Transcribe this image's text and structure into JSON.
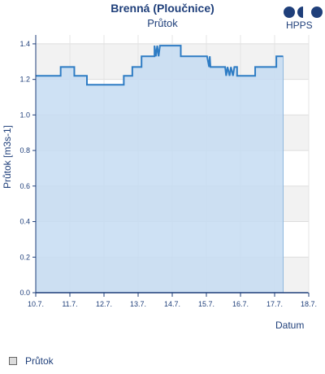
{
  "header": {
    "title": "Brenná (Ploučnice)",
    "subtitle": "Průtok",
    "logo_text": "HPPS"
  },
  "chart_data": {
    "type": "area",
    "title": "Brenná (Ploučnice)",
    "subtitle": "Průtok",
    "xlabel": "Datum",
    "ylabel": "Průtok [m3s-1]",
    "x_ticks": [
      "10.7.",
      "11.7.",
      "12.7.",
      "13.7.",
      "14.7.",
      "15.7.",
      "16.7.",
      "17.7.",
      "18.7."
    ],
    "y_ticks": [
      "0.0",
      "0.2",
      "0.4",
      "0.6",
      "0.8",
      "1.0",
      "1.2",
      "1.4"
    ],
    "ylim": [
      0,
      1.45
    ],
    "xlim": [
      0,
      8
    ],
    "grid": true,
    "legend_position": "bottom-left",
    "series": [
      {
        "name": "Průtok",
        "line_color": "#2e7cc4",
        "fill_color": "#c5dcf2",
        "points": [
          [
            0.0,
            1.22
          ],
          [
            0.73,
            1.22
          ],
          [
            0.73,
            1.27
          ],
          [
            1.13,
            1.27
          ],
          [
            1.13,
            1.22
          ],
          [
            1.5,
            1.22
          ],
          [
            1.5,
            1.17
          ],
          [
            2.58,
            1.17
          ],
          [
            2.58,
            1.22
          ],
          [
            2.83,
            1.22
          ],
          [
            2.83,
            1.27
          ],
          [
            3.1,
            1.27
          ],
          [
            3.1,
            1.33
          ],
          [
            3.48,
            1.33
          ],
          [
            3.48,
            1.39
          ],
          [
            3.52,
            1.33
          ],
          [
            3.56,
            1.39
          ],
          [
            3.6,
            1.33
          ],
          [
            3.64,
            1.39
          ],
          [
            4.25,
            1.39
          ],
          [
            4.25,
            1.33
          ],
          [
            5.02,
            1.33
          ],
          [
            5.08,
            1.27
          ],
          [
            5.1,
            1.33
          ],
          [
            5.12,
            1.27
          ],
          [
            5.55,
            1.27
          ],
          [
            5.58,
            1.22
          ],
          [
            5.62,
            1.27
          ],
          [
            5.68,
            1.22
          ],
          [
            5.72,
            1.27
          ],
          [
            5.78,
            1.22
          ],
          [
            5.82,
            1.27
          ],
          [
            5.9,
            1.27
          ],
          [
            5.9,
            1.22
          ],
          [
            6.43,
            1.22
          ],
          [
            6.43,
            1.27
          ],
          [
            7.05,
            1.27
          ],
          [
            7.05,
            1.33
          ],
          [
            7.25,
            1.33
          ],
          [
            7.25,
            1.33
          ]
        ]
      }
    ]
  },
  "legend": {
    "items": [
      {
        "label": "Průtok"
      }
    ]
  }
}
